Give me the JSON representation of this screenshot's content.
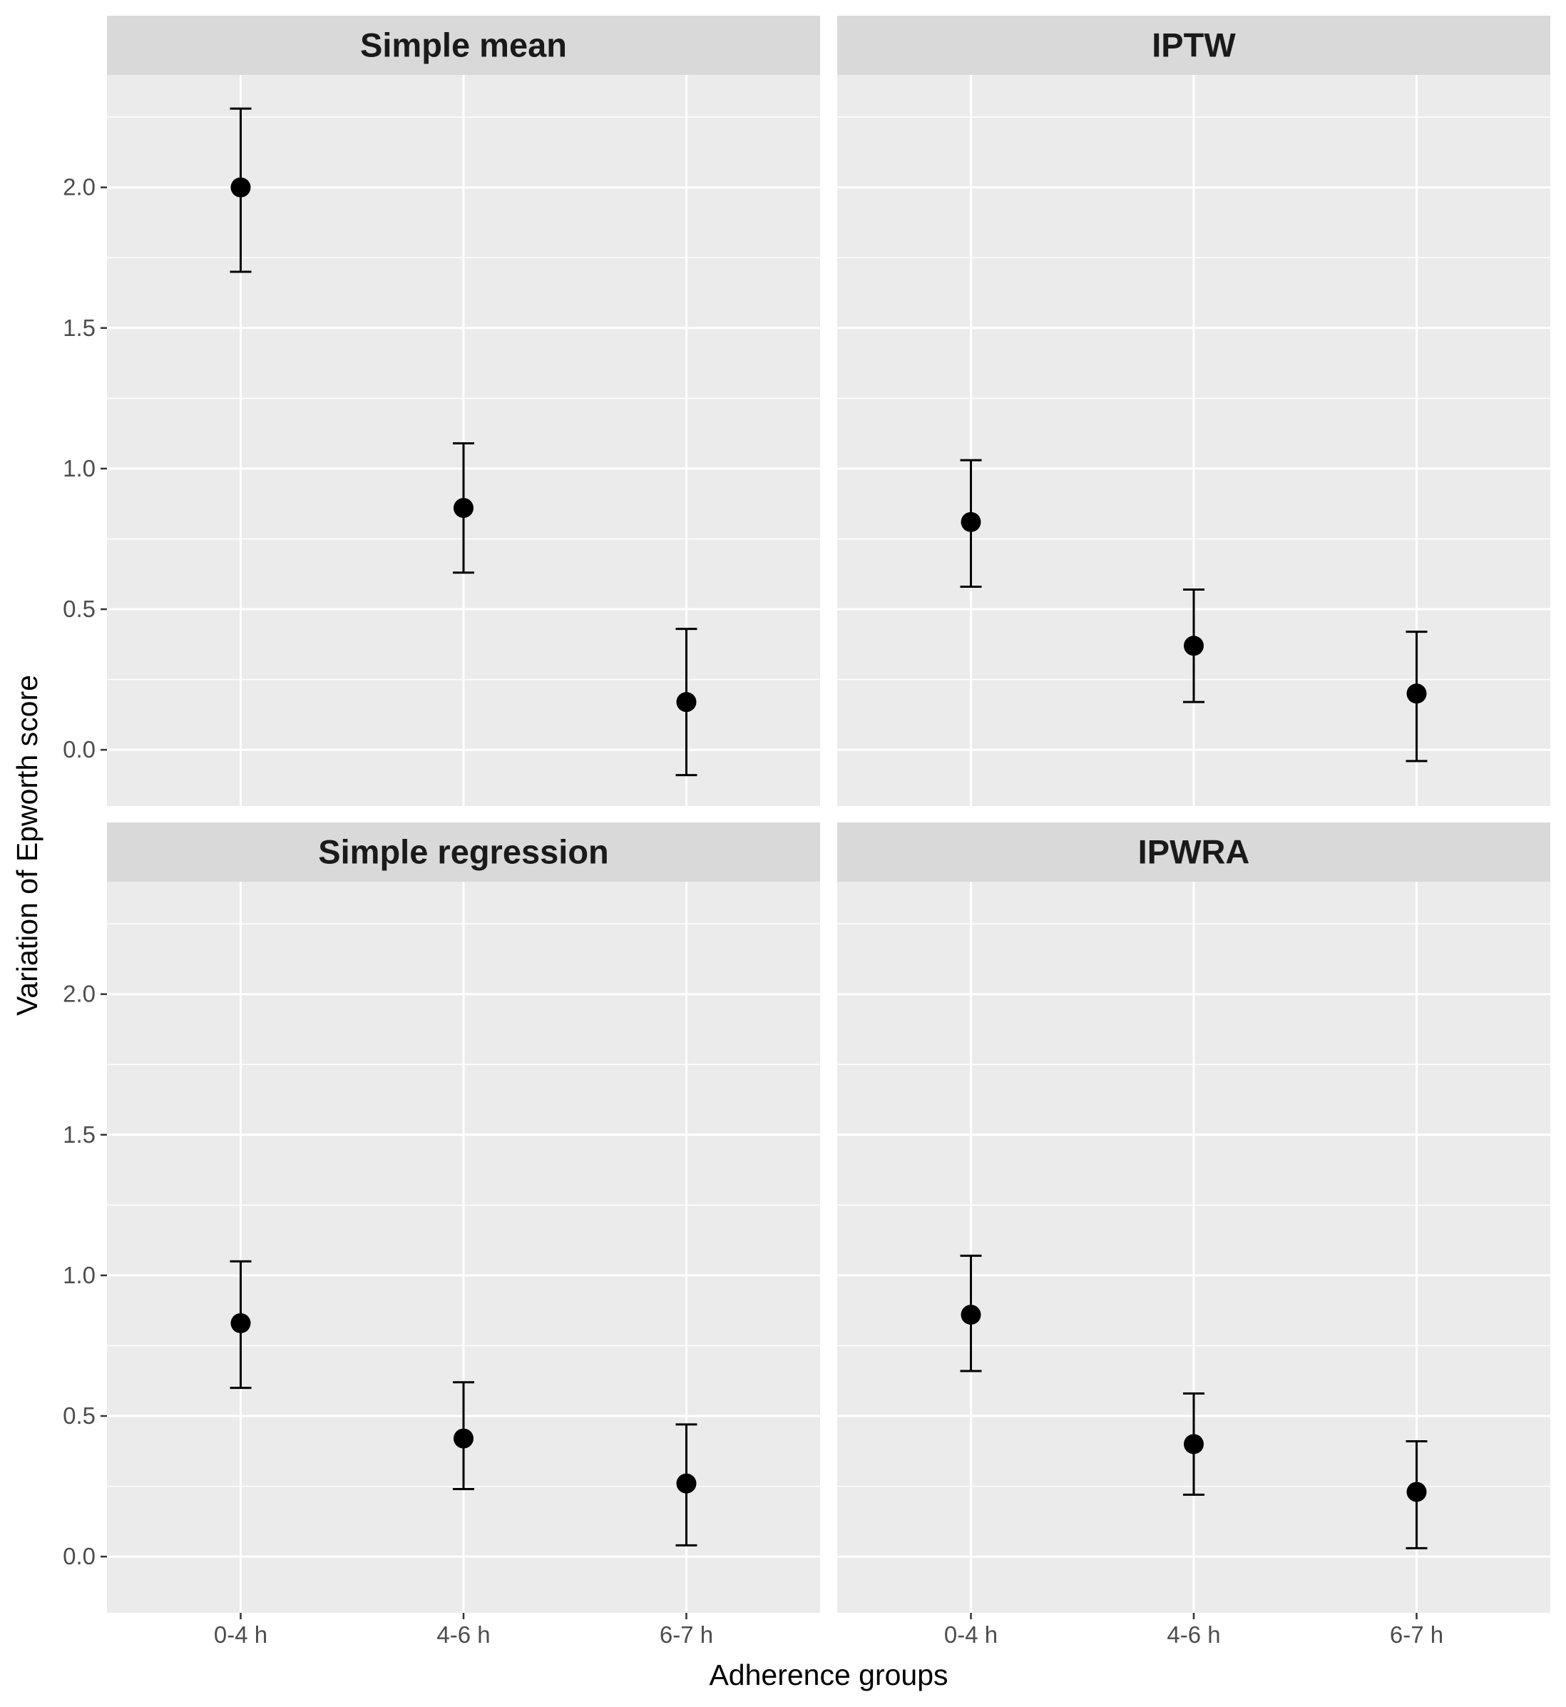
{
  "chart_data": {
    "type": "scatter",
    "subtype": "point-with-errorbars, faceted 2x2",
    "xlabel": "Adherence groups",
    "ylabel": "Variation of Epworth score",
    "categories": [
      "0-4 h",
      "4-6 h",
      "6-7 h"
    ],
    "ylim": [
      -0.2,
      2.4
    ],
    "yticks": [
      0.0,
      0.5,
      1.0,
      1.5,
      2.0
    ],
    "ytick_labels": [
      "0.0",
      "0.5",
      "1.0",
      "1.5",
      "2.0"
    ],
    "grid": true,
    "legend": "none",
    "colors": {
      "panel_background": "#ebebeb",
      "strip_background": "#d9d9d9",
      "grid": "#ffffff",
      "points": "#000000"
    },
    "facets": [
      {
        "title": "Simple mean",
        "estimate": [
          2.0,
          0.86,
          0.17
        ],
        "lower": [
          1.7,
          0.63,
          -0.09
        ],
        "upper": [
          2.28,
          1.09,
          0.43
        ]
      },
      {
        "title": "IPTW",
        "estimate": [
          0.81,
          0.37,
          0.2
        ],
        "lower": [
          0.58,
          0.17,
          -0.04
        ],
        "upper": [
          1.03,
          0.57,
          0.42
        ]
      },
      {
        "title": "Simple regression",
        "estimate": [
          0.83,
          0.42,
          0.26
        ],
        "lower": [
          0.6,
          0.24,
          0.04
        ],
        "upper": [
          1.05,
          0.62,
          0.47
        ]
      },
      {
        "title": "IPWRA",
        "estimate": [
          0.86,
          0.4,
          0.23
        ],
        "lower": [
          0.66,
          0.22,
          0.03
        ],
        "upper": [
          1.07,
          0.58,
          0.41
        ]
      }
    ]
  }
}
